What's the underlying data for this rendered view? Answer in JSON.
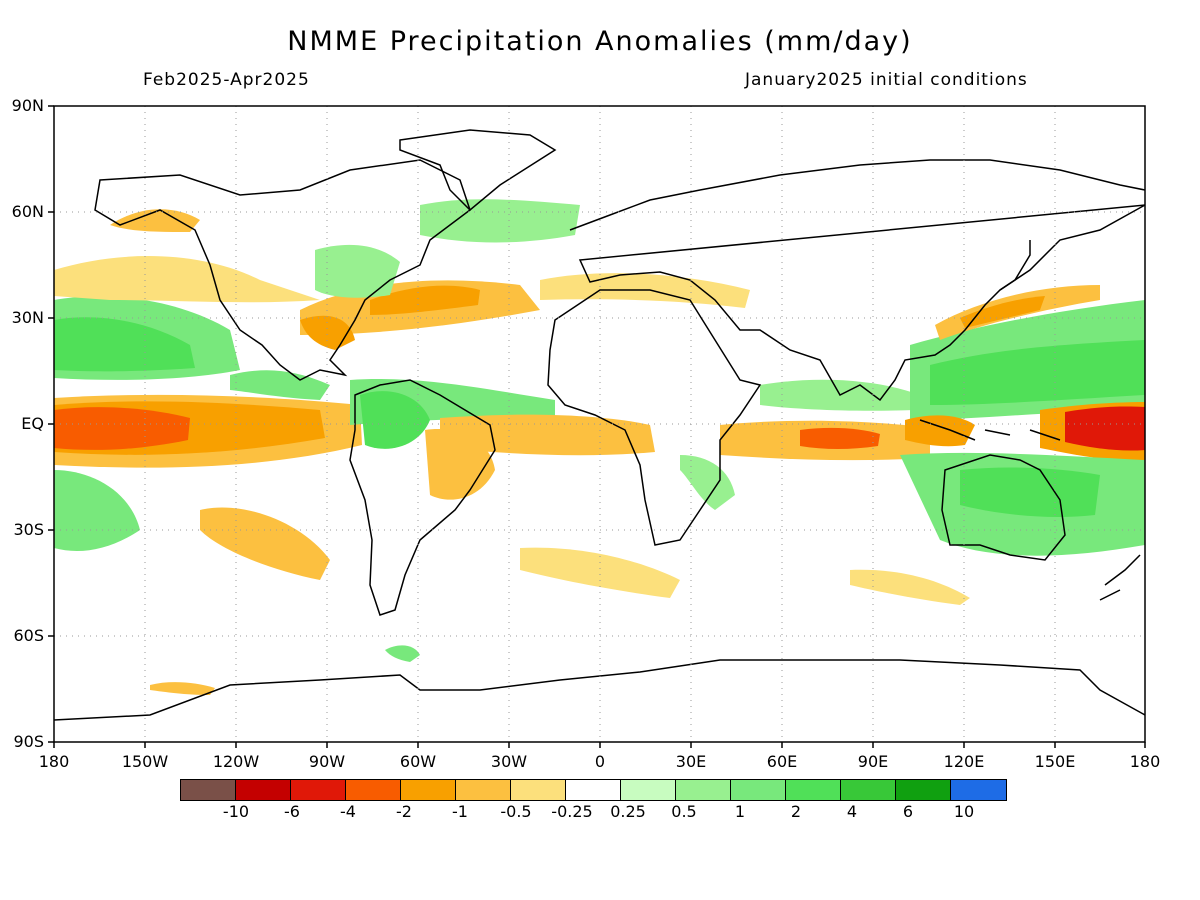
{
  "header": {
    "title": "NMME Precipitation Anomalies (mm/day)",
    "period": "Feb2025-Apr2025",
    "initial_conditions": "January2025 initial conditions"
  },
  "map": {
    "lat_ticks": [
      "90N",
      "60N",
      "30N",
      "EQ",
      "30S",
      "60S",
      "90S"
    ],
    "lon_ticks": [
      "180",
      "150W",
      "120W",
      "90W",
      "60W",
      "30W",
      "0",
      "30E",
      "60E",
      "90E",
      "120E",
      "150E",
      "180"
    ],
    "grid": "dotted",
    "extent": {
      "lon": [
        -180,
        180
      ],
      "lat": [
        -90,
        90
      ]
    }
  },
  "colorbar": {
    "colors": [
      "#7a5048",
      "#c40000",
      "#e01808",
      "#f85c00",
      "#f8a000",
      "#fcc040",
      "#fce07c",
      "#ffffff",
      "#c8fcc0",
      "#98f090",
      "#78e87c",
      "#50e058",
      "#38c838",
      "#10a010",
      "#1e6ce6"
    ],
    "labels": [
      "-10",
      "-6",
      "-4",
      "-2",
      "-1",
      "-0.5",
      "-0.25",
      "0.25",
      "0.5",
      "1",
      "2",
      "4",
      "6",
      "10"
    ]
  }
}
